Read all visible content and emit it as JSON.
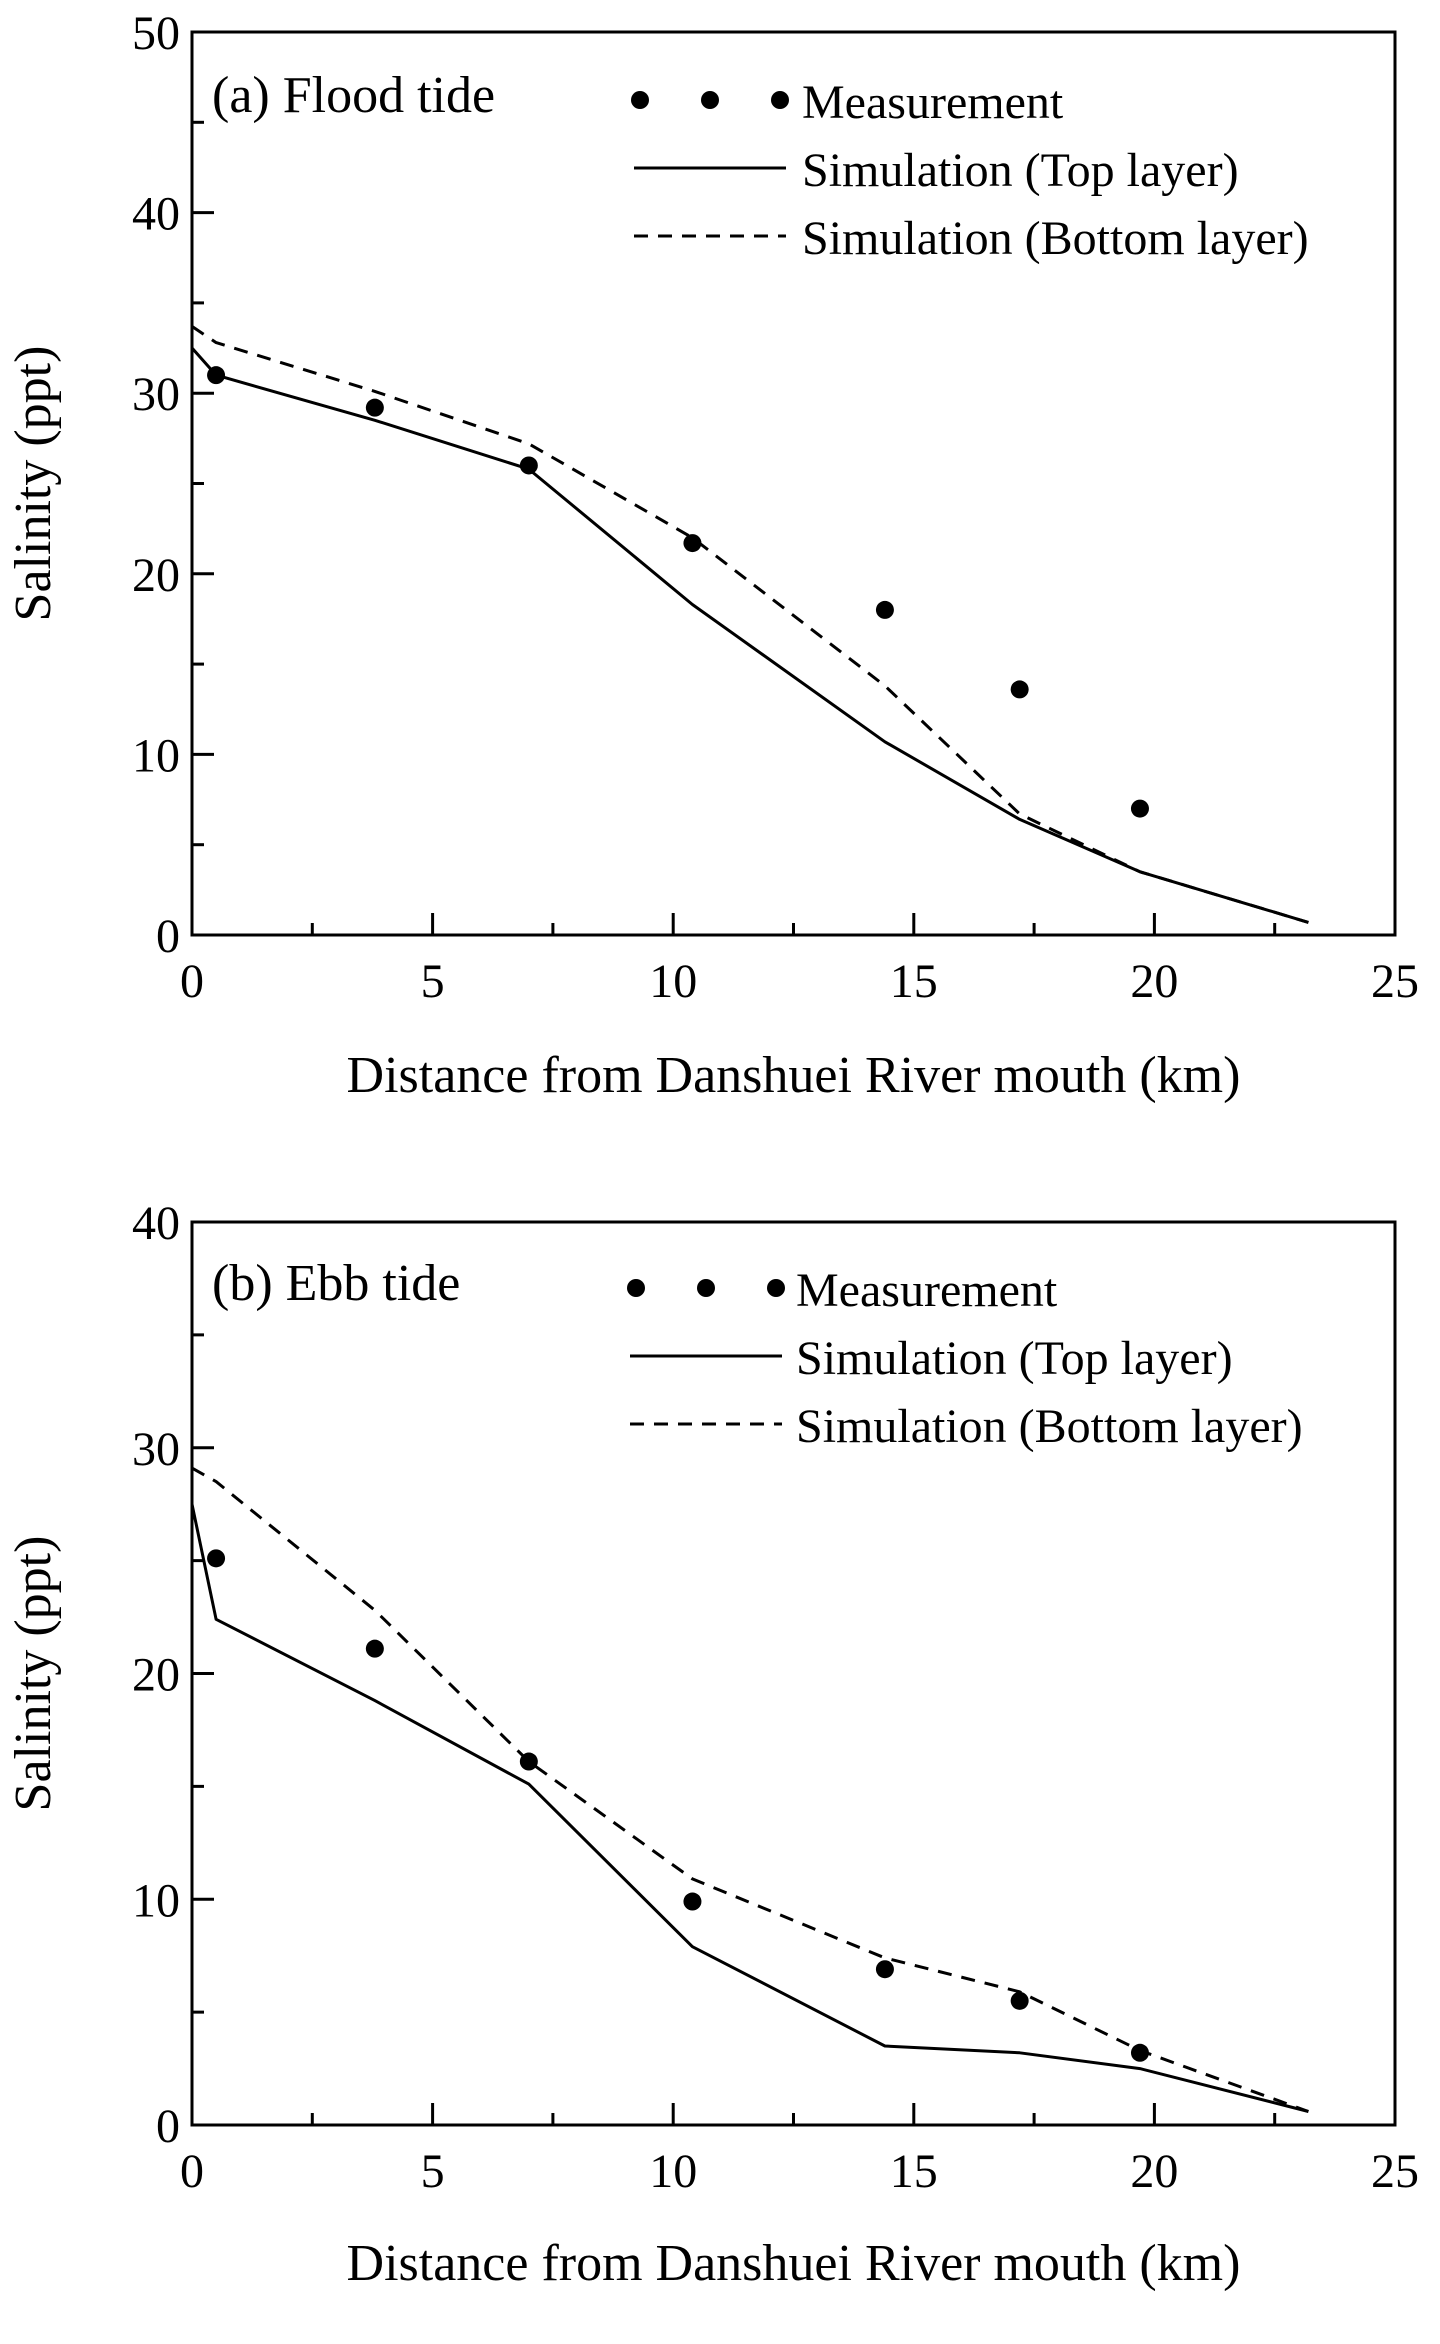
{
  "chart_data": [
    {
      "type": "line",
      "title": "(a) Flood tide",
      "xlabel": "Distance from Danshuei River mouth (km)",
      "ylabel": "Salinity (ppt)",
      "xlim": [
        0,
        25
      ],
      "ylim": [
        0,
        50
      ],
      "xticks": [
        0,
        5,
        10,
        15,
        20,
        25
      ],
      "yticks": [
        0,
        10,
        20,
        30,
        40,
        50
      ],
      "x_tick_labels": [
        "0",
        "5",
        "10",
        "15",
        "20",
        "25"
      ],
      "y_tick_labels": [
        "0",
        "10",
        "20",
        "30",
        "40",
        "50"
      ],
      "legend": {
        "position": "top-right",
        "entries": [
          "Measurement",
          "Simulation (Top layer)",
          "Simulation (Bottom layer)"
        ]
      },
      "series": [
        {
          "name": "Measurement",
          "style": "markers",
          "x": [
            0.5,
            3.8,
            7.0,
            10.4,
            14.4,
            17.2,
            19.7
          ],
          "y": [
            31.0,
            29.2,
            26.0,
            21.7,
            18.0,
            13.6,
            7.0
          ]
        },
        {
          "name": "Simulation (Top layer)",
          "style": "solid",
          "x": [
            0,
            0.5,
            3.8,
            7.0,
            10.4,
            14.4,
            17.2,
            19.7,
            23.2
          ],
          "y": [
            32.5,
            31.0,
            28.5,
            25.8,
            18.3,
            10.7,
            6.4,
            3.5,
            0.7
          ]
        },
        {
          "name": "Simulation (Bottom layer)",
          "style": "dashed",
          "x": [
            0,
            0.5,
            3.8,
            7.0,
            10.4,
            14.4,
            17.2,
            19.7,
            23.2
          ],
          "y": [
            33.7,
            32.8,
            30.1,
            27.2,
            22.0,
            13.8,
            6.7,
            3.5,
            0.7
          ]
        }
      ]
    },
    {
      "type": "line",
      "title": "(b) Ebb tide",
      "xlabel": "Distance from Danshuei River mouth (km)",
      "ylabel": "Salinity (ppt)",
      "xlim": [
        0,
        25
      ],
      "ylim": [
        0,
        40
      ],
      "xticks": [
        0,
        5,
        10,
        15,
        20,
        25
      ],
      "yticks": [
        0,
        10,
        20,
        30,
        40
      ],
      "x_tick_labels": [
        "0",
        "5",
        "10",
        "15",
        "20",
        "25"
      ],
      "y_tick_labels": [
        "0",
        "10",
        "20",
        "30",
        "40"
      ],
      "legend": {
        "position": "top-right",
        "entries": [
          "Measurement",
          "Simulation (Top layer)",
          "Simulation (Bottom layer)"
        ]
      },
      "series": [
        {
          "name": "Measurement",
          "style": "markers",
          "x": [
            0.5,
            3.8,
            7.0,
            10.4,
            14.4,
            17.2,
            19.7
          ],
          "y": [
            25.1,
            21.1,
            16.1,
            9.9,
            6.9,
            5.5,
            3.2
          ]
        },
        {
          "name": "Simulation (Top layer)",
          "style": "solid",
          "x": [
            0,
            0.5,
            3.8,
            7.0,
            10.4,
            14.4,
            17.2,
            19.7,
            23.2
          ],
          "y": [
            27.5,
            22.4,
            18.8,
            15.1,
            7.9,
            3.5,
            3.2,
            2.5,
            0.6
          ]
        },
        {
          "name": "Simulation (Bottom layer)",
          "style": "dashed",
          "x": [
            0,
            0.5,
            3.8,
            7.0,
            10.4,
            14.4,
            17.2,
            19.7,
            23.2
          ],
          "y": [
            29.1,
            28.5,
            22.8,
            16.1,
            10.9,
            7.4,
            5.9,
            3.3,
            0.6
          ]
        }
      ]
    }
  ]
}
